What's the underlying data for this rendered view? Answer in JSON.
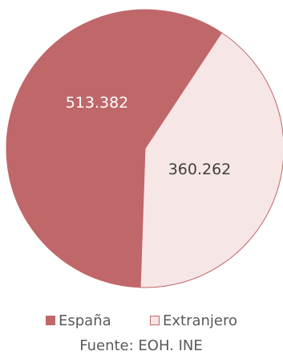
{
  "chart_data": {
    "type": "pie",
    "categories": [
      "España",
      "Extranjero"
    ],
    "values": [
      513382,
      360262
    ],
    "data_labels": [
      "513.382",
      "360.262"
    ],
    "colors": [
      "#c0676a",
      "#f7e6e6"
    ],
    "label_colors": [
      "#ffffff",
      "#404040"
    ],
    "slice_border": "#c0676a",
    "legend_placement": "bottom",
    "source": "Fuente: EOH. INE"
  }
}
